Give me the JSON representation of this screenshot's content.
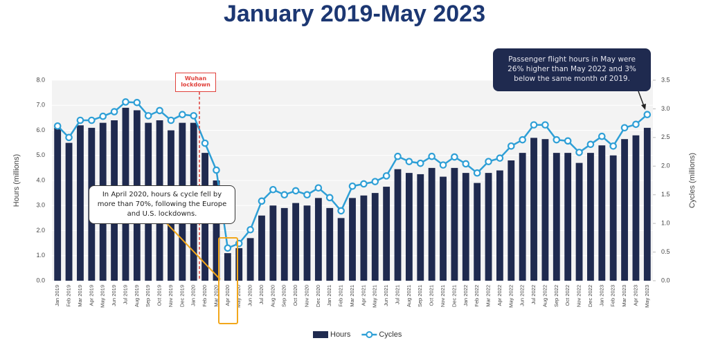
{
  "chart_data": {
    "type": "bar",
    "title": "January 2019-May 2023",
    "y_label": "Hours (millions)",
    "y2_label": "Cycles (millions)",
    "categories": [
      "Jan 2019",
      "Feb 2019",
      "Mar 2019",
      "Apr 2019",
      "May 2019",
      "Jun 2019",
      "Jul 2019",
      "Aug 2019",
      "Sep 2019",
      "Oct 2019",
      "Nov 2019",
      "Dec 2019",
      "Jan 2020",
      "Feb 2020",
      "Mar 2020",
      "Apr 2020",
      "May 2020",
      "Jun 2020",
      "Jul 2020",
      "Aug 2020",
      "Sep 2020",
      "Oct 2020",
      "Nov 2020",
      "Dec 2020",
      "Jan 2021",
      "Feb 2021",
      "Mar 2021",
      "Apr 2021",
      "May 2021",
      "Jun 2021",
      "Jul 2021",
      "Aug 2021",
      "Sep 2021",
      "Oct 2021",
      "Nov 2021",
      "Dec 2021",
      "Jan 2022",
      "Feb 2022",
      "Mar 2022",
      "Apr 2022",
      "May 2022",
      "Jun 2022",
      "Jul 2022",
      "Aug 2022",
      "Sep 2022",
      "Oct 2022",
      "Nov 2022",
      "Dec 2022",
      "Jan 2023",
      "Feb 2023",
      "Mar 2023",
      "Apr 2023",
      "May 2023"
    ],
    "series": [
      {
        "name": "Hours",
        "type": "bar",
        "color": "#1f2a4f",
        "values": [
          6.1,
          5.5,
          6.2,
          6.1,
          6.3,
          6.4,
          6.9,
          6.8,
          6.3,
          6.4,
          6.0,
          6.3,
          6.3,
          5.1,
          4.0,
          1.1,
          1.3,
          1.7,
          2.6,
          3.0,
          2.9,
          3.1,
          3.0,
          3.3,
          2.9,
          2.5,
          3.3,
          3.4,
          3.5,
          3.75,
          4.45,
          4.3,
          4.25,
          4.5,
          4.15,
          4.5,
          4.3,
          3.9,
          4.3,
          4.4,
          4.8,
          5.1,
          5.7,
          5.65,
          5.1,
          5.1,
          4.7,
          5.1,
          5.4,
          5.0,
          5.65,
          5.8,
          6.1
        ]
      },
      {
        "name": "Cycles",
        "type": "line",
        "axis": "y2",
        "color": "#2e9fd6",
        "values": [
          2.7,
          2.5,
          2.8,
          2.8,
          2.87,
          2.95,
          3.12,
          3.11,
          2.88,
          2.97,
          2.8,
          2.9,
          2.88,
          2.4,
          1.93,
          0.57,
          0.65,
          0.89,
          1.39,
          1.59,
          1.5,
          1.57,
          1.5,
          1.62,
          1.45,
          1.22,
          1.65,
          1.69,
          1.73,
          1.83,
          2.17,
          2.08,
          2.05,
          2.17,
          2.02,
          2.16,
          2.04,
          1.88,
          2.08,
          2.14,
          2.35,
          2.46,
          2.72,
          2.72,
          2.46,
          2.44,
          2.24,
          2.38,
          2.52,
          2.35,
          2.67,
          2.73,
          2.9
        ]
      }
    ],
    "ylim": [
      0,
      8
    ],
    "yticks": [
      {
        "value": 0,
        "label": "0.0"
      },
      {
        "value": 1,
        "label": "1.0"
      },
      {
        "value": 2,
        "label": "2.0"
      },
      {
        "value": 3,
        "label": "3.0"
      },
      {
        "value": 4,
        "label": "4.0"
      },
      {
        "value": 5,
        "label": "5.0"
      },
      {
        "value": 6,
        "label": "6.0"
      },
      {
        "value": 7,
        "label": "7.0"
      },
      {
        "value": 8,
        "label": "8.0"
      }
    ],
    "y2lim": [
      0,
      3.5
    ],
    "y2ticks": [
      {
        "value": 0,
        "label": "0.0"
      },
      {
        "value": 0.5,
        "label": "0.5"
      },
      {
        "value": 1,
        "label": "1.0"
      },
      {
        "value": 1.5,
        "label": "1.5"
      },
      {
        "value": 2,
        "label": "2.0"
      },
      {
        "value": 2.5,
        "label": "2.5"
      },
      {
        "value": 3,
        "label": "3.0"
      },
      {
        "value": 3.5,
        "label": "3.5"
      }
    ],
    "grid": true,
    "legend": "bottom",
    "annotations": [
      "Wuhan lockdown",
      "In April 2020, hours & cycle fell by more than 70%, following the Europe and U.S. lockdowns.",
      "Passenger flight hours in May were 26% higher than May 2022 and 3% below the same month of 2019."
    ]
  }
}
